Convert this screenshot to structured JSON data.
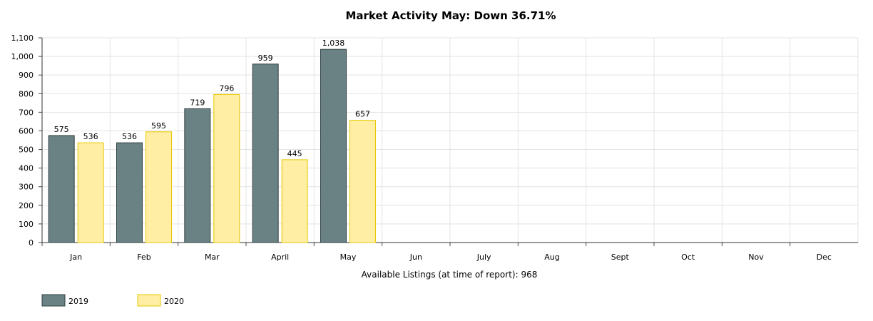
{
  "chart_data": {
    "type": "bar",
    "title": "Market Activity May: Down 36.71%",
    "xlabel": "Available Listings (at time of report): 968",
    "ylabel": "",
    "ylim": [
      0,
      1100
    ],
    "yticks": [
      "0",
      "100",
      "200",
      "300",
      "400",
      "500",
      "600",
      "700",
      "800",
      "900",
      "1,000",
      "1,100"
    ],
    "categories": [
      "Jan",
      "Feb",
      "Mar",
      "April",
      "May",
      "Jun",
      "July",
      "Aug",
      "Sept",
      "Oct",
      "Nov",
      "Dec"
    ],
    "grid": true,
    "legend_position": "bottom-left",
    "series": [
      {
        "name": "2019",
        "values": [
          575,
          536,
          719,
          959,
          1038,
          null,
          null,
          null,
          null,
          null,
          null,
          null
        ],
        "labels": [
          "575",
          "536",
          "719",
          "959",
          "1,038",
          "",
          "",
          "",
          "",
          "",
          "",
          ""
        ],
        "fill": "#6a8283",
        "stroke": "#2f4040"
      },
      {
        "name": "2020",
        "values": [
          536,
          595,
          796,
          445,
          657,
          null,
          null,
          null,
          null,
          null,
          null,
          null
        ],
        "labels": [
          "536",
          "595",
          "796",
          "445",
          "657",
          "",
          "",
          "",
          "",
          "",
          "",
          ""
        ],
        "fill": "#ffeea3",
        "stroke": "#e8c800"
      }
    ]
  }
}
